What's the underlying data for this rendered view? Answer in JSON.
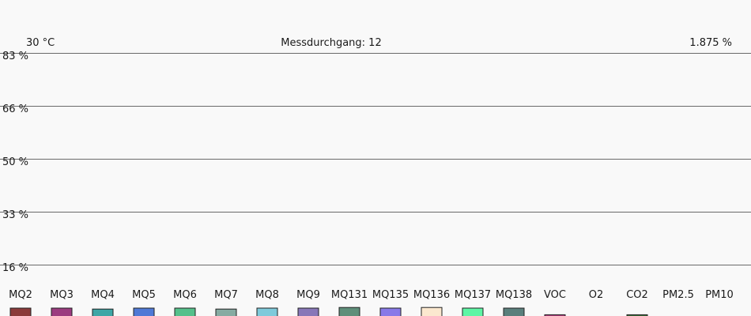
{
  "header": {
    "temperature": "30 °C",
    "run_label": "Messdurchgang: 12",
    "value": "1.875 %"
  },
  "chart_data": {
    "type": "bar",
    "y_ticks": [
      "83 %",
      "66 %",
      "50 %",
      "33 %",
      "16 %"
    ],
    "ylim": [
      0,
      83
    ],
    "grid": true,
    "categories": [
      "MQ2",
      "MQ3",
      "MQ4",
      "MQ5",
      "MQ6",
      "MQ7",
      "MQ8",
      "MQ9",
      "MQ131",
      "MQ135",
      "MQ136",
      "MQ137",
      "MQ138",
      "VOC",
      "O2",
      "CO2",
      "PM2.5",
      "PM10"
    ],
    "values": [
      2.5,
      2.5,
      2.2,
      2.5,
      2.5,
      2.2,
      2.5,
      2.5,
      2.7,
      2.5,
      2.7,
      2.5,
      2.5,
      0.4,
      0,
      0.4,
      0,
      0
    ],
    "colors": [
      "#8b3a3a",
      "#9b3b7f",
      "#3ea6a6",
      "#4f79d6",
      "#55c08b",
      "#86aba2",
      "#7fcadb",
      "#8877b8",
      "#5f8f7a",
      "#8879e8",
      "#fbe8cf",
      "#5ef5a5",
      "#5a7f7c",
      "#a83f7a",
      "#cccccc",
      "#3a6a3a",
      "#cccccc",
      "#cccccc"
    ]
  }
}
